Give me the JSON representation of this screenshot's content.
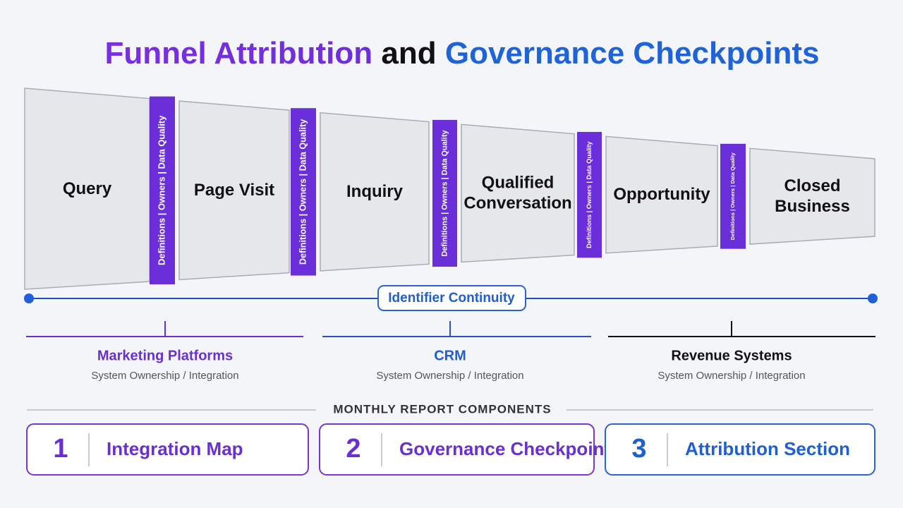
{
  "title": {
    "part1": "Funnel Attribution",
    "part2": "and",
    "part3": "Governance Checkpoints"
  },
  "stages": [
    {
      "lines": [
        "Query"
      ]
    },
    {
      "lines": [
        "Page Visit"
      ]
    },
    {
      "lines": [
        "Inquiry"
      ]
    },
    {
      "lines": [
        "Qualified",
        "Conversation"
      ]
    },
    {
      "lines": [
        "Opportunity"
      ]
    },
    {
      "lines": [
        "Closed",
        "Business"
      ]
    }
  ],
  "checkpoints": [
    {
      "label": "Definitions | Owners | Data Quality"
    },
    {
      "label": "Definitions | Owners | Data Quality"
    },
    {
      "label": "Definitions | Owners | Data Quality"
    },
    {
      "label": "Definitions | Owners | Data Quality"
    },
    {
      "label": "Definitions | Owners | Data Quality"
    }
  ],
  "continuity": {
    "label": "Identifier Continuity"
  },
  "systems": [
    {
      "name": "Marketing Platforms",
      "subtitle": "System Ownership / Integration"
    },
    {
      "name": "CRM",
      "subtitle": "System Ownership / Integration"
    },
    {
      "name": "Revenue Systems",
      "subtitle": "System Ownership / Integration"
    }
  ],
  "report": {
    "heading": "MONTHLY REPORT COMPONENTS",
    "components": [
      {
        "number": "1",
        "label": "Integration Map"
      },
      {
        "number": "2",
        "label": "Governance Checkpoints"
      },
      {
        "number": "3",
        "label": "Attribution Section"
      }
    ]
  }
}
